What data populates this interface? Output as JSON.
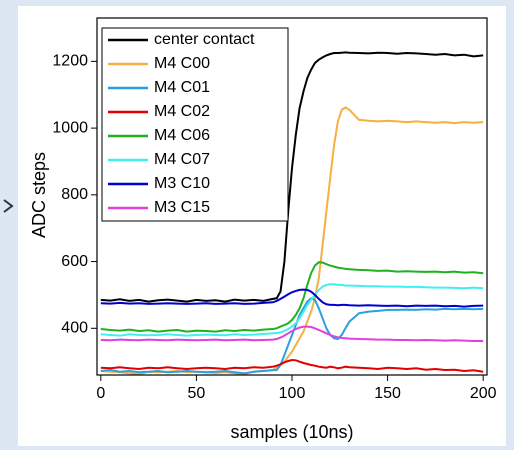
{
  "chart_data": {
    "type": "line",
    "x_label": "samples (10ns)",
    "y_label": "ADC steps",
    "x": [
      0,
      5,
      10,
      15,
      20,
      25,
      30,
      35,
      40,
      45,
      50,
      55,
      60,
      65,
      70,
      75,
      80,
      85,
      90,
      92,
      94,
      96,
      98,
      100,
      102,
      104,
      106,
      108,
      110,
      112,
      114,
      116,
      118,
      120,
      122,
      124,
      126,
      128,
      130,
      135,
      140,
      145,
      150,
      155,
      160,
      165,
      170,
      175,
      180,
      185,
      190,
      195,
      200
    ],
    "xlim": [
      -2,
      202
    ],
    "xticks": [
      0,
      50,
      100,
      150,
      200
    ],
    "ylim": [
      260,
      1330
    ],
    "yticks": [
      400,
      600,
      800,
      1000,
      1200
    ],
    "legend": "top-left",
    "series": [
      {
        "name": "center contact",
        "color": "#000000",
        "values": [
          485,
          483,
          487,
          482,
          485,
          480,
          484,
          486,
          483,
          480,
          485,
          482,
          484,
          480,
          486,
          483,
          485,
          482,
          488,
          490,
          510,
          600,
          750,
          880,
          980,
          1060,
          1110,
          1150,
          1175,
          1195,
          1205,
          1212,
          1218,
          1222,
          1225,
          1225,
          1226,
          1227,
          1226,
          1225,
          1224,
          1226,
          1225,
          1223,
          1225,
          1224,
          1222,
          1220,
          1222,
          1218,
          1220,
          1215,
          1218
        ]
      },
      {
        "name": "M4 C00",
        "color": "#f5b042",
        "values": [
          272,
          270,
          268,
          265,
          262,
          270,
          268,
          270,
          272,
          268,
          270,
          268,
          266,
          268,
          265,
          262,
          270,
          272,
          275,
          285,
          290,
          300,
          315,
          330,
          350,
          370,
          390,
          420,
          450,
          490,
          550,
          650,
          750,
          850,
          950,
          1020,
          1055,
          1062,
          1055,
          1025,
          1022,
          1020,
          1022,
          1020,
          1018,
          1020,
          1018,
          1016,
          1018,
          1015,
          1018,
          1016,
          1018
        ]
      },
      {
        "name": "M4 C01",
        "color": "#2aa0e0",
        "values": [
          272,
          275,
          270,
          272,
          268,
          270,
          272,
          268,
          270,
          272,
          270,
          268,
          270,
          272,
          268,
          265,
          270,
          272,
          274,
          275,
          290,
          320,
          350,
          380,
          410,
          440,
          460,
          480,
          490,
          485,
          460,
          430,
          400,
          380,
          370,
          368,
          380,
          400,
          420,
          445,
          450,
          452,
          455,
          455,
          456,
          455,
          457,
          456,
          458,
          457,
          458,
          457,
          458
        ]
      },
      {
        "name": "M4 C02",
        "color": "#e00000",
        "values": [
          282,
          280,
          283,
          280,
          278,
          282,
          280,
          283,
          280,
          278,
          280,
          282,
          280,
          278,
          282,
          280,
          283,
          282,
          285,
          288,
          292,
          298,
          302,
          305,
          304,
          300,
          296,
          293,
          290,
          288,
          285,
          283,
          282,
          285,
          283,
          280,
          282,
          285,
          283,
          282,
          280,
          278,
          282,
          280,
          278,
          280,
          276,
          278,
          275,
          276,
          272,
          274,
          270
        ]
      },
      {
        "name": "M4 C06",
        "color": "#20b020",
        "values": [
          398,
          395,
          393,
          396,
          392,
          394,
          390,
          393,
          395,
          390,
          393,
          392,
          390,
          394,
          392,
          395,
          393,
          396,
          398,
          400,
          405,
          410,
          415,
          425,
          440,
          460,
          490,
          530,
          565,
          588,
          598,
          597,
          592,
          588,
          585,
          582,
          580,
          578,
          577,
          575,
          574,
          572,
          573,
          570,
          571,
          570,
          569,
          570,
          568,
          570,
          567,
          568,
          565
        ]
      },
      {
        "name": "M4 C07",
        "color": "#40f0f0",
        "values": [
          382,
          380,
          378,
          382,
          380,
          379,
          380,
          382,
          380,
          378,
          380,
          381,
          380,
          379,
          382,
          380,
          381,
          383,
          385,
          386,
          388,
          392,
          398,
          405,
          415,
          430,
          450,
          470,
          485,
          500,
          515,
          525,
          530,
          532,
          532,
          530,
          530,
          528,
          528,
          527,
          526,
          526,
          525,
          525,
          524,
          524,
          523,
          522,
          522,
          521,
          520,
          522,
          520
        ]
      },
      {
        "name": "M3 C10",
        "color": "#0000d0",
        "values": [
          475,
          474,
          476,
          474,
          475,
          473,
          474,
          475,
          474,
          473,
          474,
          475,
          473,
          474,
          475,
          473,
          474,
          476,
          478,
          482,
          488,
          495,
          502,
          508,
          512,
          515,
          516,
          515,
          510,
          500,
          488,
          478,
          472,
          470,
          470,
          469,
          470,
          470,
          469,
          468,
          469,
          468,
          467,
          468,
          466,
          468,
          467,
          468,
          466,
          467,
          465,
          467,
          468
        ]
      },
      {
        "name": "M3 C15",
        "color": "#e040e0",
        "values": [
          365,
          364,
          366,
          365,
          364,
          366,
          365,
          364,
          366,
          365,
          364,
          365,
          366,
          364,
          365,
          366,
          364,
          365,
          366,
          368,
          372,
          378,
          385,
          392,
          398,
          402,
          405,
          405,
          404,
          400,
          395,
          390,
          385,
          380,
          376,
          373,
          371,
          370,
          369,
          368,
          367,
          366,
          366,
          365,
          365,
          364,
          365,
          364,
          363,
          364,
          363,
          362,
          362
        ]
      }
    ]
  }
}
